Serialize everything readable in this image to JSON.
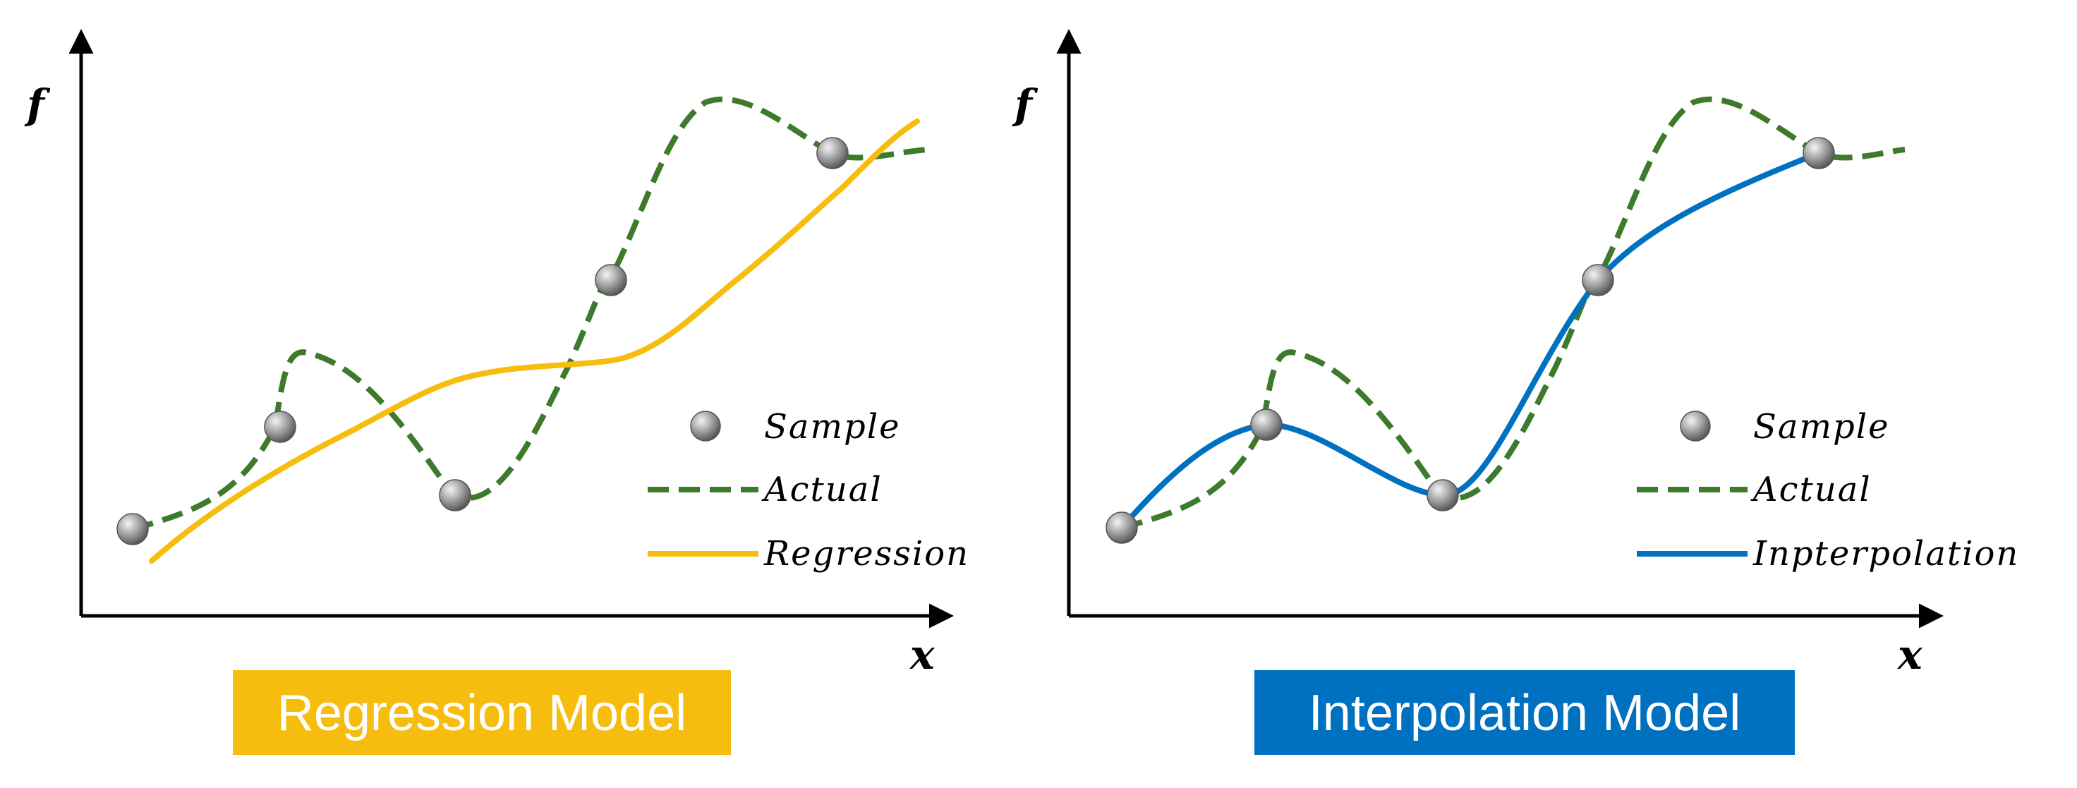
{
  "colors": {
    "actual": "#3d7a2b",
    "regression": "#f6bd0f",
    "interpolation": "#0070c0",
    "axis": "#000000",
    "sample_fill": "#9a9a9a"
  },
  "panels": [
    {
      "y_axis_label": "f",
      "x_axis_label": "x",
      "legend": {
        "sample": "Sample",
        "actual": "Actual",
        "model": "Regression"
      },
      "caption": "Regression Model"
    },
    {
      "y_axis_label": "f",
      "x_axis_label": "x",
      "legend": {
        "sample": "Sample",
        "actual": "Actual",
        "model": "Inpterpolation"
      },
      "caption": "Interpolation Model"
    }
  ]
}
